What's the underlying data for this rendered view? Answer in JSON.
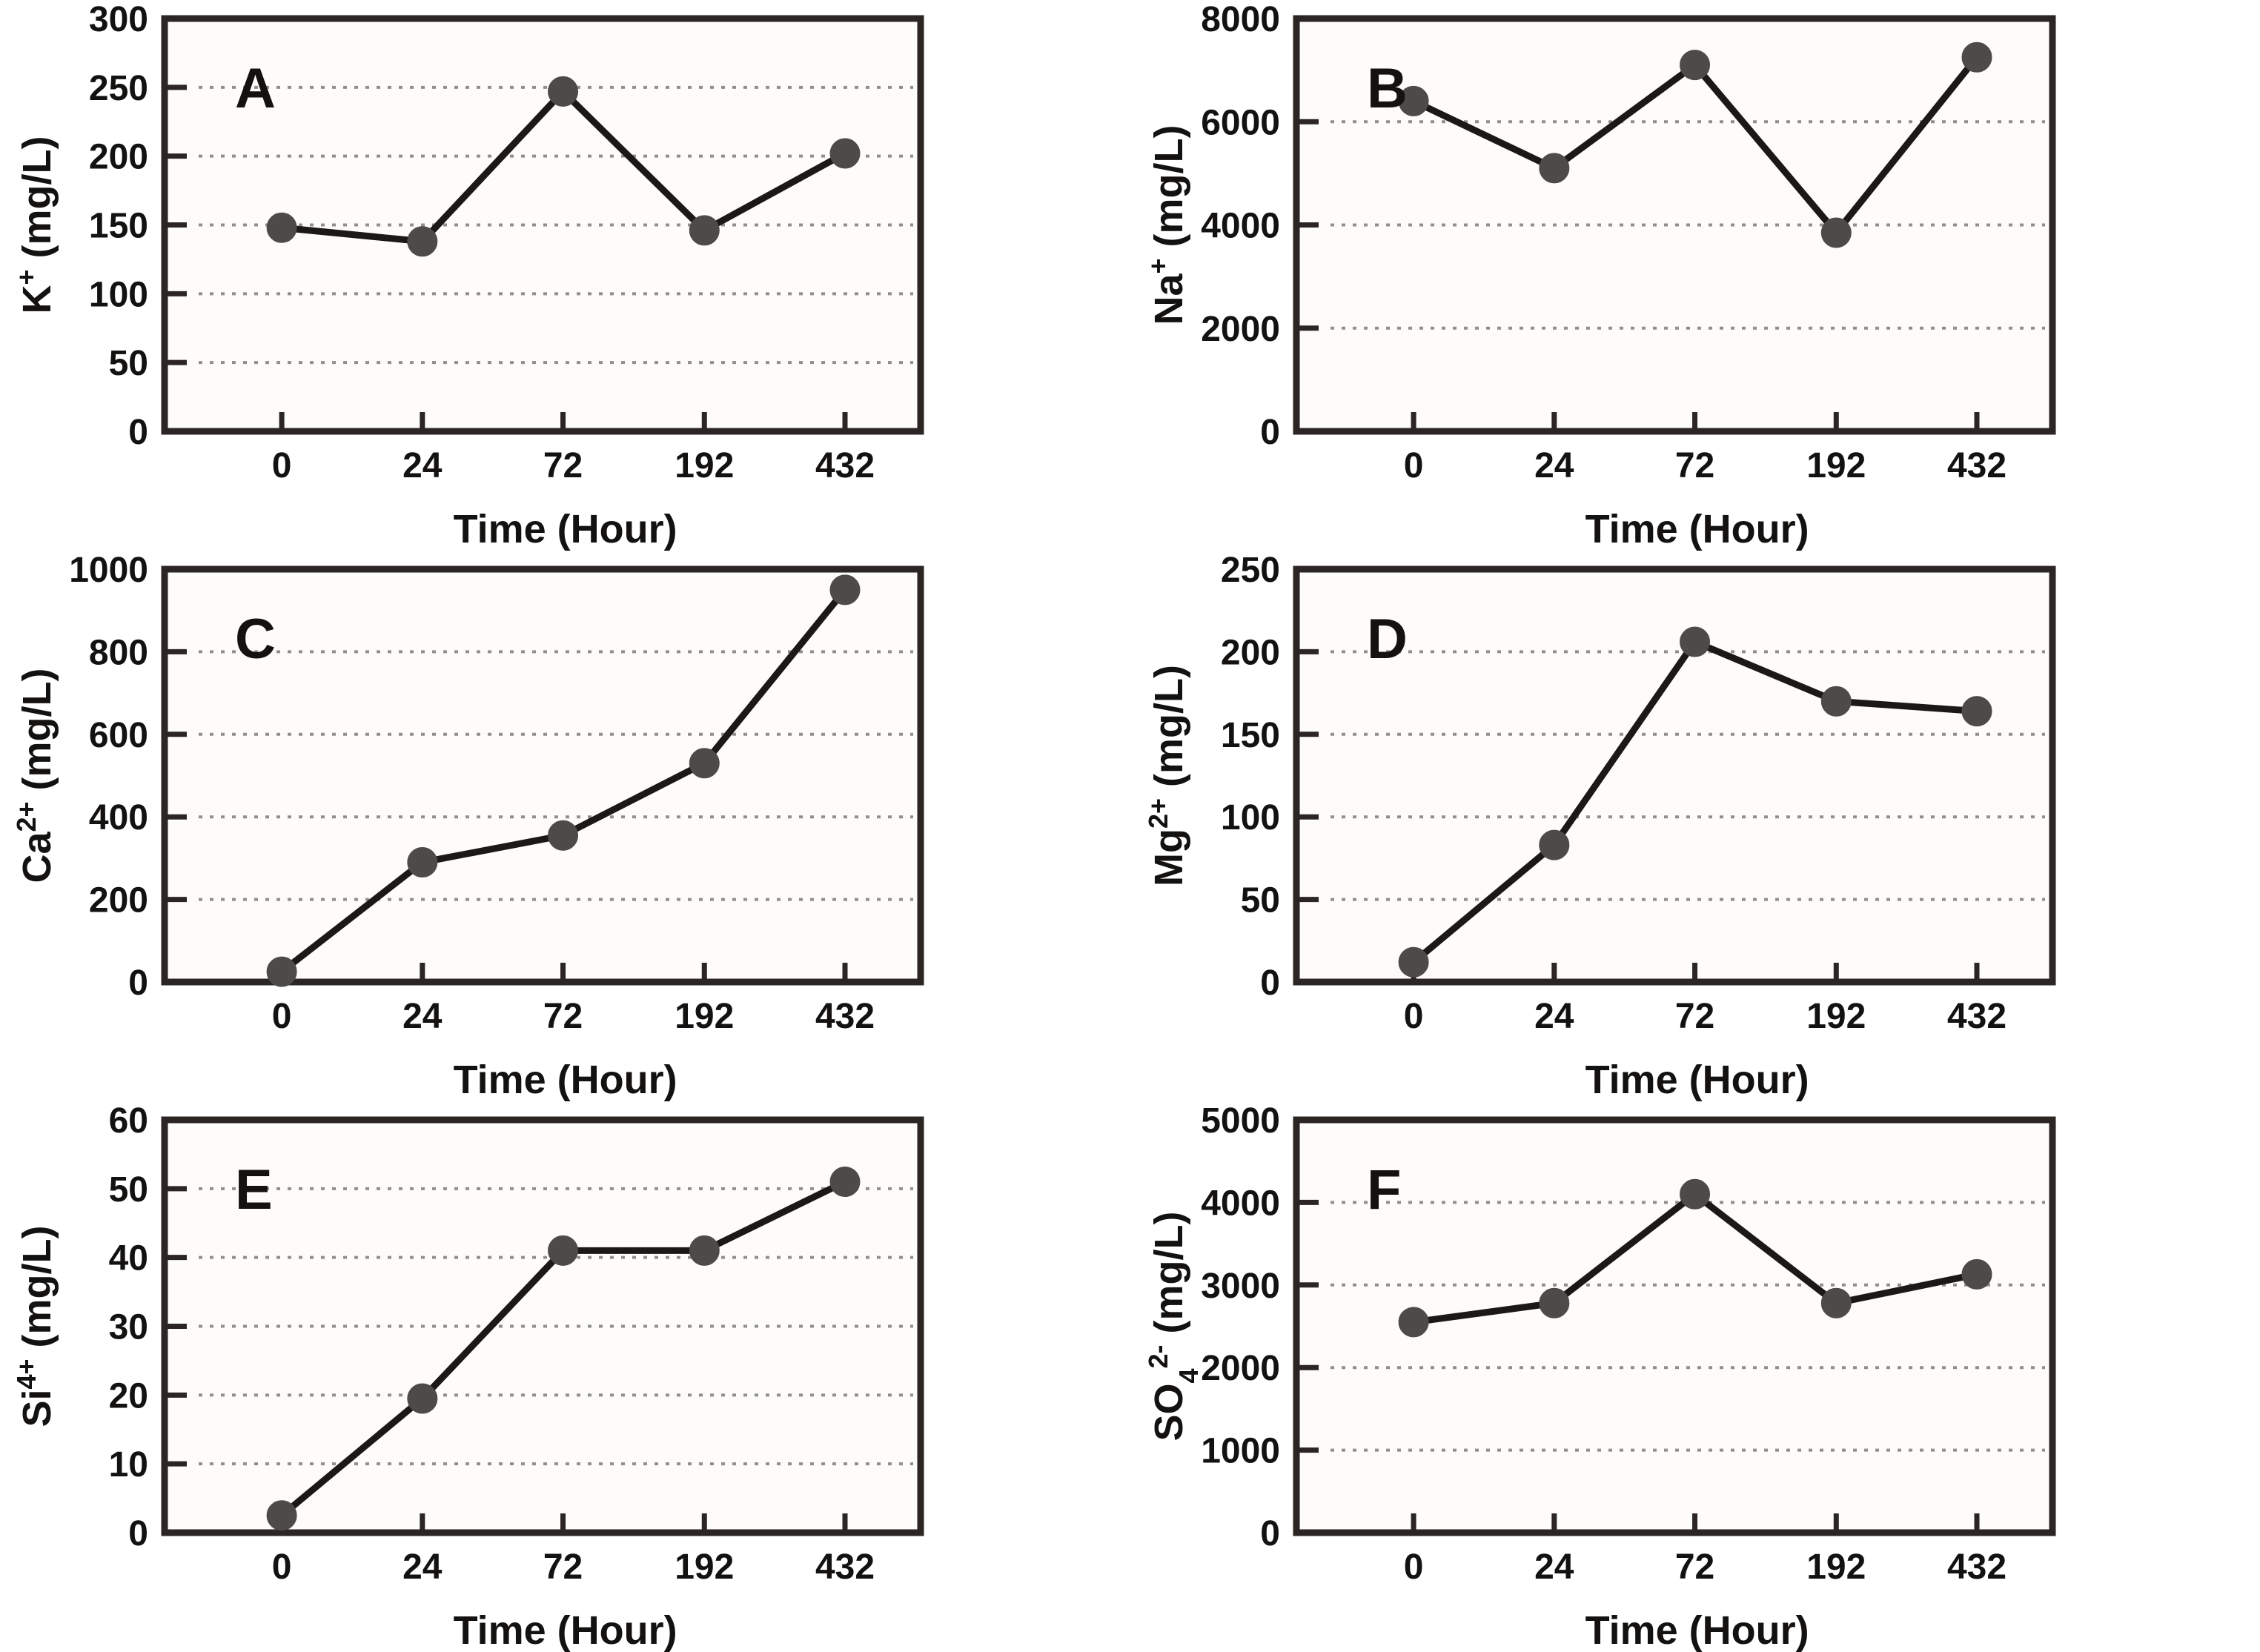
{
  "figure": {
    "description": "Six-panel time series of dissolved ion concentrations",
    "xlabel": "Time (Hour)",
    "x_tick_labels": [
      "0",
      "24",
      "72",
      "192",
      "432"
    ],
    "colors": {
      "line": "#1b1816",
      "marker": "#4d4a4a",
      "axis": "#2b2523",
      "grid": "#8f8f8f",
      "text": "#141210",
      "panel_bg": "#fdfcfa"
    }
  },
  "chart_data": [
    {
      "type": "line",
      "panel_letter": "A",
      "title": "",
      "ylabel": "K⁺ (mg/L)",
      "ylabel_parts": [
        {
          "t": "K"
        },
        {
          "t": "+",
          "style": "sup"
        },
        {
          "t": " (mg/L)"
        }
      ],
      "xlabel": "Time (Hour)",
      "categories": [
        "0",
        "24",
        "72",
        "192",
        "432"
      ],
      "values": [
        148,
        138,
        247,
        146,
        202
      ],
      "ylim": [
        0,
        300
      ],
      "ystep": 50,
      "grid": "dotted-horizontal",
      "legend": "none"
    },
    {
      "type": "line",
      "panel_letter": "B",
      "title": "",
      "ylabel": "Na⁺ (mg/L)",
      "ylabel_parts": [
        {
          "t": "Na"
        },
        {
          "t": "+",
          "style": "sup"
        },
        {
          "t": " (mg/L)"
        }
      ],
      "xlabel": "Time (Hour)",
      "categories": [
        "0",
        "24",
        "72",
        "192",
        "432"
      ],
      "values": [
        6400,
        5100,
        7100,
        3850,
        7250
      ],
      "ylim": [
        0,
        8000
      ],
      "ystep": 2000,
      "grid": "dotted-horizontal",
      "legend": "none"
    },
    {
      "type": "line",
      "panel_letter": "C",
      "title": "",
      "ylabel": "Ca²⁺ (mg/L)",
      "ylabel_parts": [
        {
          "t": "Ca"
        },
        {
          "t": "2+",
          "style": "sup"
        },
        {
          "t": " (mg/L)"
        }
      ],
      "xlabel": "Time (Hour)",
      "categories": [
        "0",
        "24",
        "72",
        "192",
        "432"
      ],
      "values": [
        25,
        290,
        355,
        530,
        950
      ],
      "ylim": [
        0,
        1000
      ],
      "ystep": 200,
      "grid": "dotted-horizontal",
      "legend": "none"
    },
    {
      "type": "line",
      "panel_letter": "D",
      "title": "",
      "ylabel": "Mg²⁺ (mg/L)",
      "ylabel_parts": [
        {
          "t": "Mg"
        },
        {
          "t": "2+",
          "style": "sup"
        },
        {
          "t": " (mg/L)"
        }
      ],
      "xlabel": "Time (Hour)",
      "categories": [
        "0",
        "24",
        "72",
        "192",
        "432"
      ],
      "values": [
        12,
        83,
        206,
        170,
        164
      ],
      "ylim": [
        0,
        250
      ],
      "ystep": 50,
      "grid": "dotted-horizontal",
      "legend": "none"
    },
    {
      "type": "line",
      "panel_letter": "E",
      "title": "",
      "ylabel": "Si⁴⁺ (mg/L)",
      "ylabel_parts": [
        {
          "t": "Si"
        },
        {
          "t": "4+",
          "style": "sup"
        },
        {
          "t": " (mg/L)"
        }
      ],
      "xlabel": "Time (Hour)",
      "categories": [
        "0",
        "24",
        "72",
        "192",
        "432"
      ],
      "values": [
        2.5,
        19.5,
        41,
        41,
        51
      ],
      "ylim": [
        0,
        60
      ],
      "ystep": 10,
      "grid": "dotted-horizontal",
      "legend": "none"
    },
    {
      "type": "line",
      "panel_letter": "F",
      "title": "",
      "ylabel": "SO₄²⁻ (mg/L)",
      "ylabel_parts": [
        {
          "t": "SO"
        },
        {
          "t": "4",
          "style": "sub"
        },
        {
          "t": "2-",
          "style": "sup"
        },
        {
          "t": " (mg/L)"
        }
      ],
      "xlabel": "Time (Hour)",
      "categories": [
        "0",
        "24",
        "72",
        "192",
        "432"
      ],
      "values": [
        2550,
        2780,
        4100,
        2780,
        3130
      ],
      "ylim": [
        0,
        5000
      ],
      "ystep": 1000,
      "grid": "dotted-horizontal",
      "legend": "none"
    }
  ]
}
